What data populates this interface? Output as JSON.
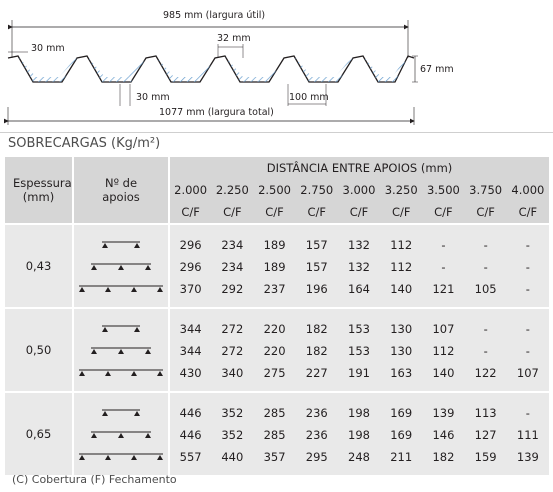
{
  "profile": {
    "useful_width": "985 mm (largura útil)",
    "total_width": "1077 mm (largura total)",
    "crest_width": "32 mm",
    "edge_width": "30 mm",
    "bottom_width": "30 mm",
    "bottom_span": "100 mm",
    "height": "67 mm"
  },
  "section_title": "SOBRECARGAS (Kg/m²)",
  "table": {
    "col_thickness": "Espessura (mm)",
    "col_supports": "Nº de apoios",
    "col_span_group": "DISTÂNCIA ENTRE APOIOS (mm)",
    "spans": [
      "2.000",
      "2.250",
      "2.500",
      "2.750",
      "3.000",
      "3.250",
      "3.500",
      "3.750",
      "4.000"
    ],
    "cf_label": "C/F",
    "groups": [
      {
        "thickness": "0,43",
        "rows": [
          [
            "296",
            "234",
            "189",
            "157",
            "132",
            "112",
            "-",
            "-",
            "-"
          ],
          [
            "296",
            "234",
            "189",
            "157",
            "132",
            "112",
            "-",
            "-",
            "-"
          ],
          [
            "370",
            "292",
            "237",
            "196",
            "164",
            "140",
            "121",
            "105",
            "-"
          ]
        ]
      },
      {
        "thickness": "0,50",
        "rows": [
          [
            "344",
            "272",
            "220",
            "182",
            "153",
            "130",
            "107",
            "-",
            "-"
          ],
          [
            "344",
            "272",
            "220",
            "182",
            "153",
            "130",
            "112",
            "-",
            "-"
          ],
          [
            "430",
            "340",
            "275",
            "227",
            "191",
            "163",
            "140",
            "122",
            "107"
          ]
        ]
      },
      {
        "thickness": "0,65",
        "rows": [
          [
            "446",
            "352",
            "285",
            "236",
            "198",
            "169",
            "139",
            "113",
            "-"
          ],
          [
            "446",
            "352",
            "285",
            "236",
            "198",
            "169",
            "146",
            "127",
            "111"
          ],
          [
            "557",
            "440",
            "357",
            "295",
            "248",
            "211",
            "182",
            "159",
            "139"
          ]
        ]
      }
    ]
  },
  "legend": "(C) Cobertura  (F) Fechamento"
}
